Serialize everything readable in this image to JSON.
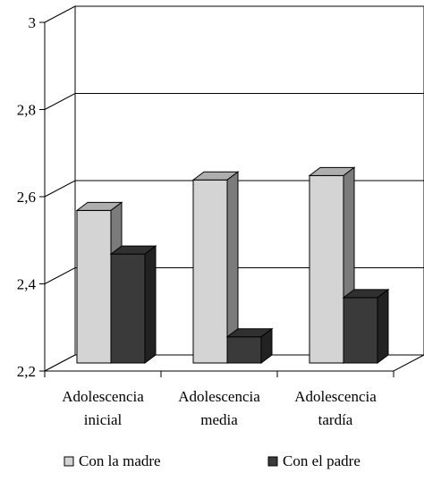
{
  "chart_data": {
    "type": "bar",
    "style": "3d-clustered-column",
    "categories": [
      [
        "Adolescencia",
        "inicial"
      ],
      [
        "Adolescencia",
        "media"
      ],
      [
        "Adolescencia",
        "tardía"
      ]
    ],
    "series": [
      {
        "name": "Con la madre",
        "values": [
          2.55,
          2.62,
          2.63
        ],
        "color": "#d4d4d4"
      },
      {
        "name": "Con el padre",
        "values": [
          2.45,
          2.26,
          2.35
        ],
        "color": "#3a3a3a"
      }
    ],
    "ylim": [
      2.2,
      3.0
    ],
    "yticks": [
      "2,2",
      "2,4",
      "2,6",
      "2,8",
      "3"
    ],
    "grid": true,
    "legend": "bottom",
    "title": "",
    "xlabel": "",
    "ylabel": ""
  }
}
